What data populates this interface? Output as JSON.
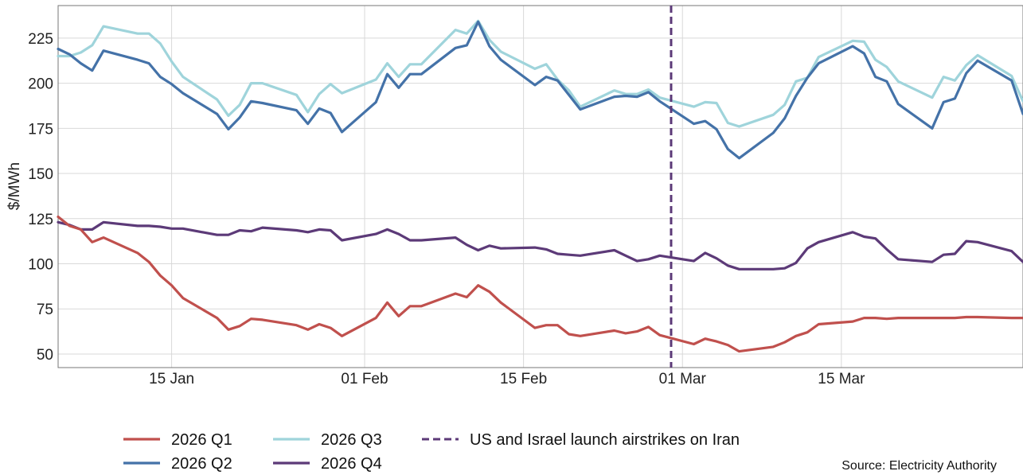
{
  "chart_data": {
    "type": "line",
    "title": "",
    "xlabel": "",
    "ylabel": "$/MWh",
    "x_type": "date",
    "xlim": [
      "2026-01-05",
      "2026-03-31"
    ],
    "ylim": [
      42.5,
      243
    ],
    "yticks": [
      50,
      75,
      100,
      125,
      150,
      175,
      200,
      225
    ],
    "xticks": [
      {
        "date": "2026-01-15",
        "label": "15 Jan"
      },
      {
        "date": "2026-02-01",
        "label": "01 Feb"
      },
      {
        "date": "2026-02-15",
        "label": "15 Feb"
      },
      {
        "date": "2026-03-01",
        "label": "01 Mar"
      },
      {
        "date": "2026-03-15",
        "label": "15 Mar"
      }
    ],
    "grid": true,
    "legend_position": "bottom",
    "series": [
      {
        "name": "2026 Q1",
        "color": "#c0504d",
        "points": [
          [
            "2026-01-05",
            126
          ],
          [
            "2026-01-06",
            121
          ],
          [
            "2026-01-07",
            119
          ],
          [
            "2026-01-08",
            112
          ],
          [
            "2026-01-09",
            114.5
          ],
          [
            "2026-01-12",
            106
          ],
          [
            "2026-01-13",
            101
          ],
          [
            "2026-01-14",
            93.5
          ],
          [
            "2026-01-15",
            88
          ],
          [
            "2026-01-16",
            81
          ],
          [
            "2026-01-19",
            70
          ],
          [
            "2026-01-20",
            63.5
          ],
          [
            "2026-01-21",
            65.5
          ],
          [
            "2026-01-22",
            69.5
          ],
          [
            "2026-01-23",
            69
          ],
          [
            "2026-01-26",
            66
          ],
          [
            "2026-01-27",
            63.5
          ],
          [
            "2026-01-28",
            66.5
          ],
          [
            "2026-01-29",
            64.5
          ],
          [
            "2026-01-30",
            60
          ],
          [
            "2026-02-02",
            70
          ],
          [
            "2026-02-03",
            78.5
          ],
          [
            "2026-02-04",
            71
          ],
          [
            "2026-02-05",
            76.5
          ],
          [
            "2026-02-06",
            76.5
          ],
          [
            "2026-02-09",
            83.5
          ],
          [
            "2026-02-10",
            81.5
          ],
          [
            "2026-02-11",
            88
          ],
          [
            "2026-02-12",
            84.5
          ],
          [
            "2026-02-13",
            78.5
          ],
          [
            "2026-02-16",
            64.5
          ],
          [
            "2026-02-17",
            66
          ],
          [
            "2026-02-18",
            66
          ],
          [
            "2026-02-19",
            61
          ],
          [
            "2026-02-20",
            60
          ],
          [
            "2026-02-23",
            63
          ],
          [
            "2026-02-24",
            61.5
          ],
          [
            "2026-02-25",
            62.5
          ],
          [
            "2026-02-26",
            65
          ],
          [
            "2026-02-27",
            60.5
          ],
          [
            "2026-03-02",
            55.5
          ],
          [
            "2026-03-03",
            58.5
          ],
          [
            "2026-03-04",
            57
          ],
          [
            "2026-03-05",
            55
          ],
          [
            "2026-03-06",
            51.5
          ],
          [
            "2026-03-09",
            54
          ],
          [
            "2026-03-10",
            56.5
          ],
          [
            "2026-03-11",
            60
          ],
          [
            "2026-03-12",
            62
          ],
          [
            "2026-03-13",
            66.5
          ],
          [
            "2026-03-16",
            68
          ],
          [
            "2026-03-17",
            70
          ],
          [
            "2026-03-18",
            70
          ],
          [
            "2026-03-19",
            69.5
          ],
          [
            "2026-03-20",
            70
          ],
          [
            "2026-03-23",
            70
          ],
          [
            "2026-03-24",
            70
          ],
          [
            "2026-03-25",
            70
          ],
          [
            "2026-03-26",
            70.5
          ],
          [
            "2026-03-27",
            70.5
          ],
          [
            "2026-03-30",
            70
          ],
          [
            "2026-03-31",
            70
          ]
        ]
      },
      {
        "name": "2026 Q2",
        "color": "#4472a8",
        "points": [
          [
            "2026-01-05",
            219
          ],
          [
            "2026-01-06",
            216
          ],
          [
            "2026-01-07",
            211
          ],
          [
            "2026-01-08",
            207
          ],
          [
            "2026-01-09",
            218
          ],
          [
            "2026-01-12",
            213
          ],
          [
            "2026-01-13",
            211
          ],
          [
            "2026-01-14",
            203.5
          ],
          [
            "2026-01-15",
            199.5
          ],
          [
            "2026-01-16",
            194.5
          ],
          [
            "2026-01-19",
            183
          ],
          [
            "2026-01-20",
            174.5
          ],
          [
            "2026-01-21",
            181
          ],
          [
            "2026-01-22",
            190
          ],
          [
            "2026-01-23",
            189
          ],
          [
            "2026-01-26",
            185
          ],
          [
            "2026-01-27",
            177.5
          ],
          [
            "2026-01-28",
            186
          ],
          [
            "2026-01-29",
            183.5
          ],
          [
            "2026-01-30",
            173
          ],
          [
            "2026-02-02",
            189.5
          ],
          [
            "2026-02-03",
            205
          ],
          [
            "2026-02-04",
            197.5
          ],
          [
            "2026-02-05",
            205
          ],
          [
            "2026-02-06",
            205
          ],
          [
            "2026-02-09",
            219.5
          ],
          [
            "2026-02-10",
            221
          ],
          [
            "2026-02-11",
            234
          ],
          [
            "2026-02-12",
            220.5
          ],
          [
            "2026-02-13",
            213
          ],
          [
            "2026-02-16",
            199
          ],
          [
            "2026-02-17",
            203.5
          ],
          [
            "2026-02-18",
            201.5
          ],
          [
            "2026-02-19",
            193.5
          ],
          [
            "2026-02-20",
            185.5
          ],
          [
            "2026-02-23",
            192.5
          ],
          [
            "2026-02-24",
            193
          ],
          [
            "2026-02-25",
            192.5
          ],
          [
            "2026-02-26",
            195
          ],
          [
            "2026-02-27",
            190
          ],
          [
            "2026-03-02",
            177.5
          ],
          [
            "2026-03-03",
            179
          ],
          [
            "2026-03-04",
            174.5
          ],
          [
            "2026-03-05",
            163.5
          ],
          [
            "2026-03-06",
            158.5
          ],
          [
            "2026-03-09",
            172.5
          ],
          [
            "2026-03-10",
            180.5
          ],
          [
            "2026-03-11",
            193
          ],
          [
            "2026-03-12",
            203
          ],
          [
            "2026-03-13",
            211
          ],
          [
            "2026-03-16",
            220.5
          ],
          [
            "2026-03-17",
            216.5
          ],
          [
            "2026-03-18",
            203.5
          ],
          [
            "2026-03-19",
            201
          ],
          [
            "2026-03-20",
            188.5
          ],
          [
            "2026-03-23",
            175
          ],
          [
            "2026-03-24",
            189.5
          ],
          [
            "2026-03-25",
            191.5
          ],
          [
            "2026-03-26",
            205.5
          ],
          [
            "2026-03-27",
            212.5
          ],
          [
            "2026-03-30",
            201.5
          ],
          [
            "2026-03-31",
            183
          ]
        ]
      },
      {
        "name": "2026 Q3",
        "color": "#9fd4db",
        "points": [
          [
            "2026-01-05",
            215
          ],
          [
            "2026-01-06",
            215
          ],
          [
            "2026-01-07",
            217
          ],
          [
            "2026-01-08",
            221
          ],
          [
            "2026-01-09",
            231.5
          ],
          [
            "2026-01-12",
            227.5
          ],
          [
            "2026-01-13",
            227.5
          ],
          [
            "2026-01-14",
            222
          ],
          [
            "2026-01-15",
            212
          ],
          [
            "2026-01-16",
            203.5
          ],
          [
            "2026-01-19",
            191
          ],
          [
            "2026-01-20",
            182
          ],
          [
            "2026-01-21",
            188
          ],
          [
            "2026-01-22",
            200
          ],
          [
            "2026-01-23",
            200
          ],
          [
            "2026-01-26",
            193.5
          ],
          [
            "2026-01-27",
            184
          ],
          [
            "2026-01-28",
            194
          ],
          [
            "2026-01-29",
            199.5
          ],
          [
            "2026-01-30",
            194.5
          ],
          [
            "2026-02-02",
            202
          ],
          [
            "2026-02-03",
            211
          ],
          [
            "2026-02-04",
            203.5
          ],
          [
            "2026-02-05",
            210.5
          ],
          [
            "2026-02-06",
            210.5
          ],
          [
            "2026-02-09",
            229.5
          ],
          [
            "2026-02-10",
            227.5
          ],
          [
            "2026-02-11",
            234.5
          ],
          [
            "2026-02-12",
            224
          ],
          [
            "2026-02-13",
            217.5
          ],
          [
            "2026-02-16",
            208
          ],
          [
            "2026-02-17",
            210.5
          ],
          [
            "2026-02-18",
            202
          ],
          [
            "2026-02-19",
            196
          ],
          [
            "2026-02-20",
            187
          ],
          [
            "2026-02-23",
            196
          ],
          [
            "2026-02-24",
            194
          ],
          [
            "2026-02-25",
            194
          ],
          [
            "2026-02-26",
            196.5
          ],
          [
            "2026-02-27",
            192
          ],
          [
            "2026-03-02",
            187
          ],
          [
            "2026-03-03",
            189.5
          ],
          [
            "2026-03-04",
            189
          ],
          [
            "2026-03-05",
            178
          ],
          [
            "2026-03-06",
            176
          ],
          [
            "2026-03-09",
            182.5
          ],
          [
            "2026-03-10",
            188
          ],
          [
            "2026-03-11",
            201
          ],
          [
            "2026-03-12",
            203
          ],
          [
            "2026-03-13",
            214.5
          ],
          [
            "2026-03-16",
            223.5
          ],
          [
            "2026-03-17",
            223
          ],
          [
            "2026-03-18",
            213
          ],
          [
            "2026-03-19",
            209
          ],
          [
            "2026-03-20",
            201
          ],
          [
            "2026-03-23",
            192
          ],
          [
            "2026-03-24",
            203.5
          ],
          [
            "2026-03-25",
            201.5
          ],
          [
            "2026-03-26",
            210
          ],
          [
            "2026-03-27",
            215.5
          ],
          [
            "2026-03-30",
            204
          ],
          [
            "2026-03-31",
            190
          ]
        ]
      },
      {
        "name": "2026 Q4",
        "color": "#5c3a78",
        "points": [
          [
            "2026-01-05",
            123
          ],
          [
            "2026-01-06",
            121.5
          ],
          [
            "2026-01-07",
            119
          ],
          [
            "2026-01-08",
            119
          ],
          [
            "2026-01-09",
            123
          ],
          [
            "2026-01-12",
            121
          ],
          [
            "2026-01-13",
            121
          ],
          [
            "2026-01-14",
            120.5
          ],
          [
            "2026-01-15",
            119.5
          ],
          [
            "2026-01-16",
            119.5
          ],
          [
            "2026-01-19",
            116
          ],
          [
            "2026-01-20",
            116
          ],
          [
            "2026-01-21",
            118.5
          ],
          [
            "2026-01-22",
            118
          ],
          [
            "2026-01-23",
            120
          ],
          [
            "2026-01-26",
            118.5
          ],
          [
            "2026-01-27",
            117.5
          ],
          [
            "2026-01-28",
            119
          ],
          [
            "2026-01-29",
            118.5
          ],
          [
            "2026-01-30",
            113
          ],
          [
            "2026-02-02",
            116.5
          ],
          [
            "2026-02-03",
            119
          ],
          [
            "2026-02-04",
            116.5
          ],
          [
            "2026-02-05",
            113
          ],
          [
            "2026-02-06",
            113
          ],
          [
            "2026-02-09",
            114.5
          ],
          [
            "2026-02-10",
            110.5
          ],
          [
            "2026-02-11",
            107.5
          ],
          [
            "2026-02-12",
            110
          ],
          [
            "2026-02-13",
            108.5
          ],
          [
            "2026-02-16",
            109
          ],
          [
            "2026-02-17",
            108
          ],
          [
            "2026-02-18",
            105.5
          ],
          [
            "2026-02-19",
            105
          ],
          [
            "2026-02-20",
            104.5
          ],
          [
            "2026-02-23",
            107.5
          ],
          [
            "2026-02-24",
            104.5
          ],
          [
            "2026-02-25",
            101.5
          ],
          [
            "2026-02-26",
            102.5
          ],
          [
            "2026-02-27",
            104.5
          ],
          [
            "2026-03-02",
            101.5
          ],
          [
            "2026-03-03",
            106
          ],
          [
            "2026-03-04",
            103
          ],
          [
            "2026-03-05",
            99
          ],
          [
            "2026-03-06",
            97
          ],
          [
            "2026-03-09",
            97
          ],
          [
            "2026-03-10",
            97.5
          ],
          [
            "2026-03-11",
            100.5
          ],
          [
            "2026-03-12",
            108.5
          ],
          [
            "2026-03-13",
            112
          ],
          [
            "2026-03-16",
            117.5
          ],
          [
            "2026-03-17",
            115
          ],
          [
            "2026-03-18",
            114
          ],
          [
            "2026-03-19",
            108
          ],
          [
            "2026-03-20",
            102.5
          ],
          [
            "2026-03-23",
            101
          ],
          [
            "2026-03-24",
            105
          ],
          [
            "2026-03-25",
            105.5
          ],
          [
            "2026-03-26",
            112.5
          ],
          [
            "2026-03-27",
            112
          ],
          [
            "2026-03-30",
            107
          ],
          [
            "2026-03-31",
            101
          ]
        ]
      }
    ],
    "annotations": [
      {
        "type": "vline",
        "date": "2026-02-28",
        "label": "US and Israel launch airstrikes on Iran",
        "color": "#5c3a78",
        "style": "dashed"
      }
    ],
    "source": "Source: Electricity Authority"
  }
}
